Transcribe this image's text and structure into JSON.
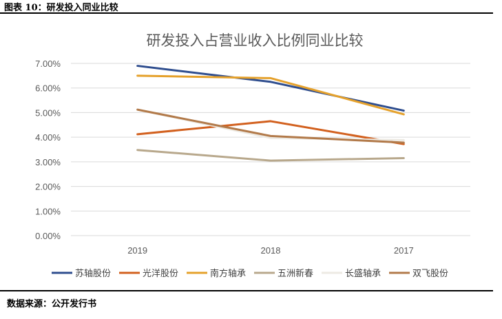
{
  "figure_label": "图表 10：研发投入同业比较",
  "source_note": "数据来源：公开发行书",
  "chart_data": {
    "type": "line",
    "title": "研发投入占营业收入比例同业比较",
    "categories": [
      "2019",
      "2018",
      "2017"
    ],
    "y_ticks": [
      "0.00%",
      "1.00%",
      "2.00%",
      "3.00%",
      "4.00%",
      "5.00%",
      "6.00%",
      "7.00%"
    ],
    "ylim": [
      0,
      7
    ],
    "unit": "%",
    "grid": true,
    "legend_position": "bottom",
    "series": [
      {
        "name": "苏轴股份",
        "color": "#2E4D8E",
        "values": [
          6.9,
          6.25,
          5.08
        ]
      },
      {
        "name": "光洋股份",
        "color": "#D2601E",
        "values": [
          4.12,
          4.65,
          3.72
        ]
      },
      {
        "name": "南方轴承",
        "color": "#E5A12B",
        "values": [
          6.5,
          6.4,
          4.93
        ]
      },
      {
        "name": "五洲新春",
        "color": "#B8A88C",
        "values": [
          3.48,
          3.05,
          3.15
        ]
      },
      {
        "name": "长盛轴承",
        "color": "#EDEAE3",
        "values": [
          5.12,
          3.97,
          3.88
        ]
      },
      {
        "name": "双飞股份",
        "color": "#B27A4A",
        "values": [
          5.12,
          4.05,
          3.78
        ]
      }
    ]
  }
}
